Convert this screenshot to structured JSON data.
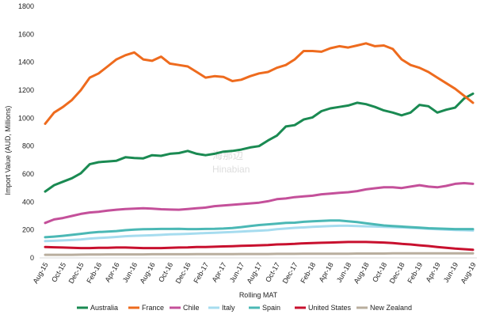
{
  "chart_data": {
    "type": "line",
    "title": "",
    "xlabel": "Rolling MAT",
    "ylabel": "Import Value (AUD, Millions)",
    "ylim": [
      0,
      1800
    ],
    "yticks": [
      0,
      200,
      400,
      600,
      800,
      1000,
      1200,
      1400,
      1600,
      1800
    ],
    "grid": false,
    "legend_position": "bottom",
    "x_tick_labels": [
      "Aug-15",
      "Oct-15",
      "Dec-15",
      "Feb-16",
      "Apr-16",
      "Jun-16",
      "Aug-16",
      "Oct-16",
      "Dec-16",
      "Feb-17",
      "Apr-17",
      "Jun-17",
      "Aug-17",
      "Oct-17",
      "Dec-17",
      "Feb-18",
      "Apr-18",
      "Jun-18",
      "Aug-18",
      "Oct-18",
      "Dec-18",
      "Feb-19",
      "Apr-19",
      "Jun-19",
      "Aug-19"
    ],
    "x": [
      "Aug-15",
      "Sep-15",
      "Oct-15",
      "Nov-15",
      "Dec-15",
      "Jan-16",
      "Feb-16",
      "Mar-16",
      "Apr-16",
      "May-16",
      "Jun-16",
      "Jul-16",
      "Aug-16",
      "Sep-16",
      "Oct-16",
      "Nov-16",
      "Dec-16",
      "Jan-17",
      "Feb-17",
      "Mar-17",
      "Apr-17",
      "May-17",
      "Jun-17",
      "Jul-17",
      "Aug-17",
      "Sep-17",
      "Oct-17",
      "Nov-17",
      "Dec-17",
      "Jan-18",
      "Feb-18",
      "Mar-18",
      "Apr-18",
      "May-18",
      "Jun-18",
      "Jul-18",
      "Aug-18",
      "Sep-18",
      "Oct-18",
      "Nov-18",
      "Dec-18",
      "Jan-19",
      "Feb-19",
      "Mar-19",
      "Apr-19",
      "May-19",
      "Jun-19",
      "Jul-19",
      "Aug-19"
    ],
    "series": [
      {
        "name": "Australia",
        "color": "#1a8a52",
        "values": [
          475,
          520,
          545,
          570,
          605,
          670,
          685,
          690,
          695,
          720,
          715,
          712,
          735,
          730,
          745,
          750,
          765,
          745,
          735,
          745,
          760,
          765,
          775,
          790,
          800,
          840,
          875,
          940,
          950,
          990,
          1005,
          1050,
          1070,
          1080,
          1090,
          1110,
          1100,
          1080,
          1055,
          1040,
          1020,
          1040,
          1095,
          1085,
          1040,
          1060,
          1075,
          1140,
          1175
        ]
      },
      {
        "name": "France",
        "color": "#ee6b1e",
        "values": [
          960,
          1040,
          1080,
          1130,
          1200,
          1290,
          1320,
          1370,
          1420,
          1450,
          1470,
          1420,
          1410,
          1440,
          1390,
          1380,
          1370,
          1330,
          1290,
          1300,
          1295,
          1265,
          1275,
          1300,
          1320,
          1330,
          1360,
          1380,
          1420,
          1480,
          1480,
          1475,
          1500,
          1515,
          1505,
          1520,
          1535,
          1515,
          1520,
          1495,
          1420,
          1380,
          1360,
          1330,
          1290,
          1250,
          1210,
          1160,
          1110
        ]
      },
      {
        "name": "Chile",
        "color": "#c4509a",
        "values": [
          250,
          275,
          285,
          300,
          315,
          325,
          330,
          338,
          345,
          350,
          352,
          355,
          352,
          348,
          346,
          345,
          350,
          355,
          360,
          370,
          375,
          380,
          385,
          390,
          395,
          405,
          420,
          425,
          435,
          440,
          445,
          455,
          460,
          465,
          470,
          478,
          490,
          498,
          505,
          505,
          500,
          510,
          520,
          510,
          505,
          515,
          530,
          535,
          530
        ]
      },
      {
        "name": "Italy",
        "color": "#a6dcef",
        "values": [
          120,
          122,
          125,
          128,
          132,
          138,
          142,
          146,
          150,
          155,
          158,
          160,
          162,
          165,
          168,
          170,
          172,
          175,
          178,
          180,
          182,
          185,
          188,
          192,
          195,
          198,
          205,
          210,
          215,
          218,
          222,
          225,
          228,
          230,
          230,
          228,
          226,
          224,
          222,
          220,
          218,
          215,
          212,
          208,
          205,
          202,
          200,
          198,
          196
        ]
      },
      {
        "name": "Spain",
        "color": "#4bb8b5",
        "values": [
          148,
          152,
          158,
          165,
          172,
          180,
          185,
          188,
          192,
          198,
          202,
          205,
          206,
          207,
          207,
          208,
          206,
          206,
          207,
          208,
          210,
          214,
          220,
          228,
          235,
          240,
          245,
          250,
          252,
          258,
          262,
          265,
          268,
          268,
          262,
          256,
          248,
          240,
          232,
          228,
          224,
          220,
          216,
          212,
          210,
          208,
          206,
          206,
          206
        ]
      },
      {
        "name": "United States",
        "color": "#c8102e",
        "values": [
          78,
          76,
          74,
          72,
          70,
          70,
          72,
          72,
          74,
          74,
          72,
          70,
          70,
          70,
          72,
          74,
          75,
          78,
          78,
          80,
          82,
          84,
          86,
          88,
          90,
          92,
          96,
          98,
          100,
          104,
          106,
          108,
          110,
          112,
          114,
          114,
          114,
          112,
          110,
          106,
          100,
          96,
          90,
          85,
          78,
          72,
          66,
          62,
          58
        ]
      },
      {
        "name": "New Zealand",
        "color": "#b9ae9e",
        "values": [
          22,
          22,
          22,
          22,
          23,
          24,
          24,
          25,
          25,
          25,
          25,
          25,
          26,
          26,
          26,
          26,
          26,
          27,
          27,
          27,
          27,
          27,
          28,
          28,
          28,
          28,
          29,
          29,
          29,
          30,
          30,
          30,
          30,
          30,
          30,
          31,
          31,
          31,
          31,
          32,
          32,
          32,
          32,
          32,
          32,
          33,
          33,
          33,
          33
        ]
      }
    ]
  },
  "watermark": {
    "latin": "Hinabian",
    "cjk": "海那边"
  }
}
